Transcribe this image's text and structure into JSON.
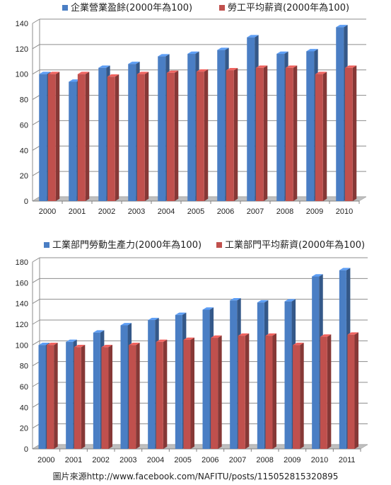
{
  "colors": {
    "blue": "#4a7ec4",
    "red": "#c0504d",
    "grid": "#8c8c8c",
    "floor": "#bfbfbf"
  },
  "chart_data": [
    {
      "type": "bar",
      "title": "",
      "categories": [
        "2000",
        "2001",
        "2002",
        "2003",
        "2004",
        "2005",
        "2006",
        "2007",
        "2008",
        "2009",
        "2010"
      ],
      "series": [
        {
          "name": "企業營業盈餘(2000年為100)",
          "color": "#4a7ec4",
          "values": [
            100,
            94,
            105,
            108,
            114,
            116,
            119,
            129,
            116,
            118,
            137
          ]
        },
        {
          "name": "勞工平均薪資(2000年為100)",
          "color": "#c0504d",
          "values": [
            100,
            100,
            98,
            100,
            101,
            102,
            103,
            105,
            105,
            100,
            105
          ]
        }
      ],
      "ylim": [
        0,
        140
      ],
      "yticks": [
        0,
        20,
        40,
        60,
        80,
        100,
        120,
        140
      ],
      "grid": true,
      "legend": "top"
    },
    {
      "type": "bar",
      "title": "",
      "categories": [
        "2000",
        "2001",
        "2002",
        "2003",
        "2004",
        "2005",
        "2006",
        "2007",
        "2008",
        "2009",
        "2010",
        "2011"
      ],
      "series": [
        {
          "name": "工業部門勞動生產力(2000年為100)",
          "color": "#4a7ec4",
          "values": [
            100,
            103,
            112,
            119,
            124,
            129,
            134,
            143,
            141,
            142,
            166,
            172
          ]
        },
        {
          "name": "工業部門平均薪資(2000年為100)",
          "color": "#c0504d",
          "values": [
            100,
            98,
            98,
            100,
            103,
            105,
            107,
            109,
            109,
            100,
            108,
            110
          ]
        }
      ],
      "ylim": [
        0,
        180
      ],
      "yticks": [
        0,
        20,
        40,
        60,
        80,
        100,
        120,
        140,
        160,
        180
      ],
      "grid": true,
      "legend": "top"
    }
  ],
  "credit": "圖片來源http://www.facebook.com/NAFITU/posts/115052815320895"
}
